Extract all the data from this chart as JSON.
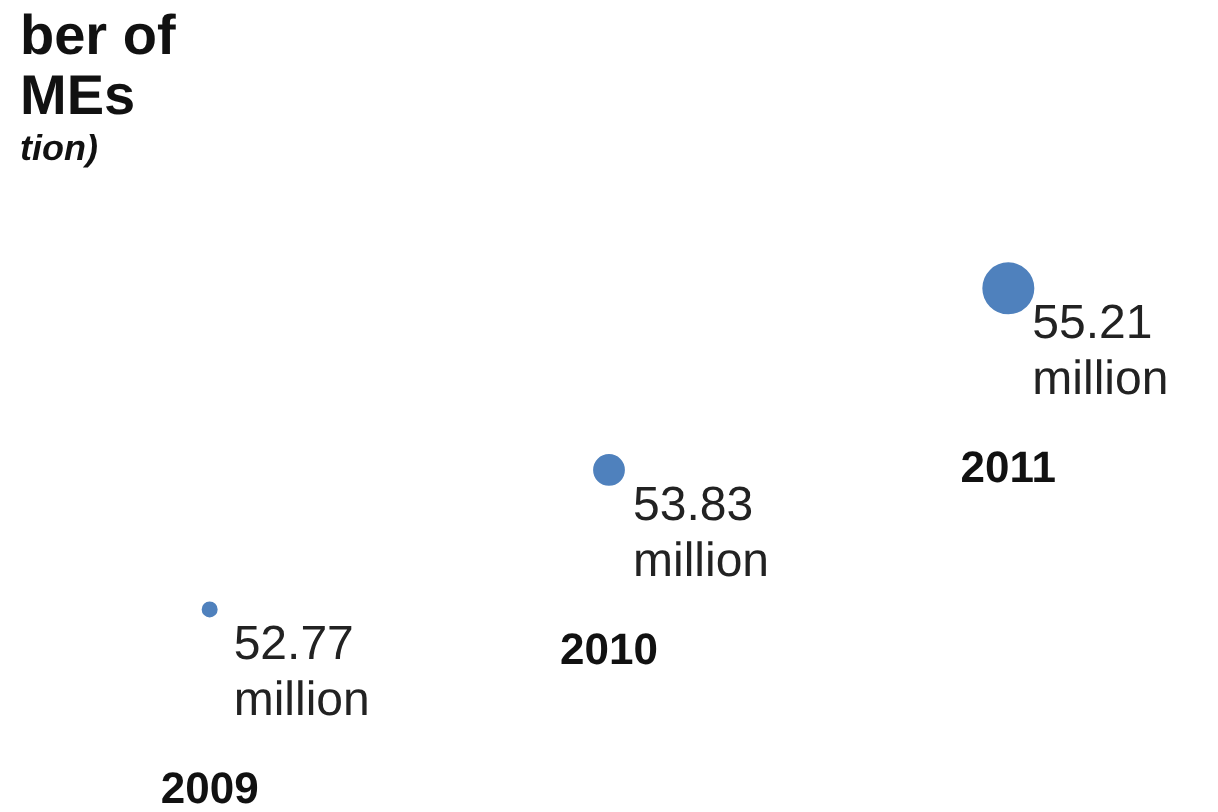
{
  "chart_data": {
    "type": "other",
    "title": [
      "ber of",
      "MEs"
    ],
    "subtitle": "tion)",
    "categories": [
      "2009",
      "2010",
      "2011"
    ],
    "values": [
      52.77,
      53.83,
      55.21
    ],
    "value_labels": [
      "52.77 million",
      "53.83 million",
      "55.21 million"
    ],
    "color": "#4f81bd"
  }
}
